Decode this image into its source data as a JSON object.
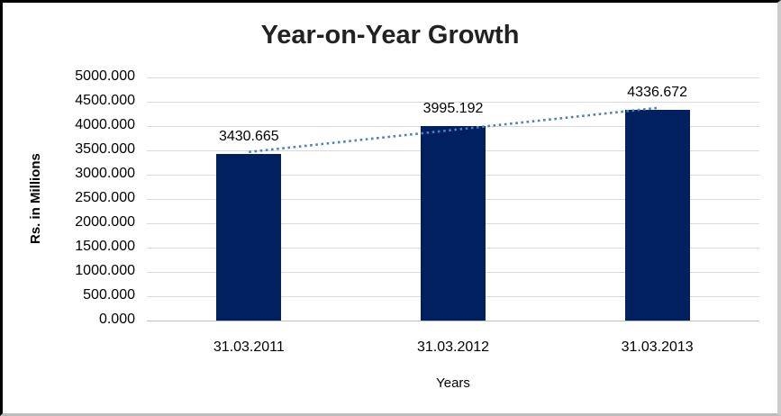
{
  "window": {
    "background": "#FFFFFF",
    "border_top_left_color": "#000000",
    "border_bottom_right_color": "#CCCCCC"
  },
  "chart_data": {
    "type": "bar",
    "title": "Year-on-Year Growth",
    "categories": [
      "31.03.2011",
      "31.03.2012",
      "31.03.2013"
    ],
    "values": [
      3430.665,
      3995.192,
      4336.672
    ],
    "data_labels": [
      "3430.665",
      "3995.192",
      "4336.672"
    ],
    "xlabel": "Years",
    "ylabel": "Rs. in Millions",
    "ylim": [
      0,
      5000
    ],
    "ytick_interval": 500,
    "ytick_labels": [
      "5000.000",
      "4500.000",
      "4000.000",
      "3500.000",
      "3000.000",
      "2500.000",
      "2000.000",
      "1500.000",
      "1000.000",
      "500.000",
      "0.000"
    ],
    "grid": "horizontal",
    "legend": "none",
    "bar_color": "#002060",
    "gridline_color": "#D9D9D9",
    "axis_line_color": "#BFBFBF",
    "title_color": "#222222",
    "text_color": "#000000",
    "trendline": {
      "type": "linear",
      "style": "dotted",
      "color": "#4F81BD"
    }
  }
}
